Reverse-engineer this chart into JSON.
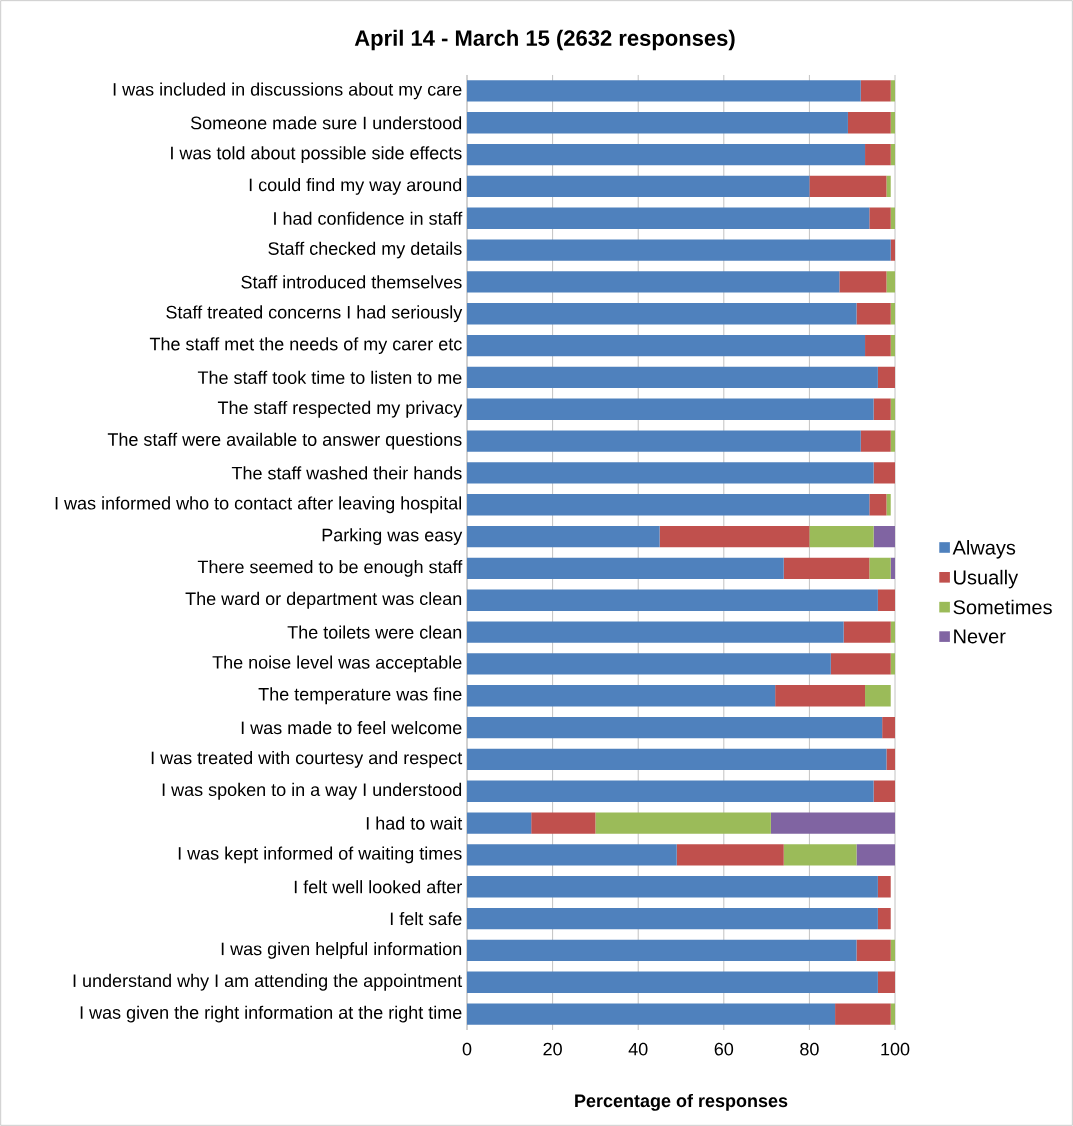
{
  "chart_data": {
    "type": "bar",
    "orientation": "horizontal",
    "stacked": true,
    "title": "April 14 - March 15 (2632 responses)",
    "xlabel": "Percentage of responses",
    "categories": [
      "I was included in discussions about my care",
      "Someone made sure I understood",
      "I was told about possible side effects",
      "I could find my way around",
      "I had confidence in staff",
      "Staff checked my details",
      "Staff introduced themselves",
      "Staff treated concerns I had seriously",
      "The staff met the needs of my carer etc",
      "The staff took time to listen to me",
      "The staff respected my privacy",
      "The staff were available to answer questions",
      "The staff washed their hands",
      "I was informed who to contact after leaving hospital",
      "Parking was easy",
      "There seemed to be enough staff",
      "The ward or department was clean",
      "The toilets were clean",
      "The noise level was acceptable",
      "The temperature was fine",
      "I was made to feel welcome",
      "I was treated with courtesy and respect",
      "I was spoken to in a way I understood",
      "I had to wait",
      "I was kept informed of waiting times",
      "I felt well looked after",
      "I felt safe",
      "I was given helpful information",
      "I understand why I am attending the appointment",
      "I was given the right information at the right time"
    ],
    "series": [
      {
        "name": "Always",
        "color": "#4f81bd",
        "values": [
          92,
          89,
          93,
          80,
          94,
          99,
          87,
          91,
          93,
          96,
          95,
          92,
          95,
          94,
          45,
          74,
          96,
          88,
          85,
          72,
          97,
          98,
          95,
          15,
          49,
          96,
          96,
          91,
          96,
          86
        ]
      },
      {
        "name": "Usually",
        "color": "#c0504d",
        "values": [
          7,
          10,
          6,
          18,
          5,
          1,
          11,
          8,
          6,
          4,
          4,
          7,
          5,
          4,
          35,
          20,
          4,
          11,
          14,
          21,
          3,
          2,
          5,
          15,
          25,
          3,
          3,
          8,
          4,
          13
        ]
      },
      {
        "name": "Sometimes",
        "color": "#9bbb59",
        "values": [
          1,
          1,
          1,
          1,
          1,
          0,
          2,
          1,
          1,
          0,
          1,
          1,
          0,
          1,
          15,
          5,
          0,
          1,
          1,
          6,
          0,
          0,
          0,
          41,
          17,
          0,
          0,
          1,
          0,
          1
        ]
      },
      {
        "name": "Never",
        "color": "#8064a2",
        "values": [
          0,
          0,
          0,
          0,
          0,
          0,
          0,
          0,
          0,
          0,
          0,
          0,
          0,
          0,
          5,
          1,
          0,
          0,
          0,
          0,
          0,
          0,
          0,
          29,
          9,
          0,
          0,
          0,
          0,
          0
        ]
      }
    ],
    "xlim": [
      0,
      100
    ],
    "xticks": [
      0,
      20,
      40,
      60,
      80,
      100
    ],
    "grid": "x",
    "legend": "right"
  }
}
